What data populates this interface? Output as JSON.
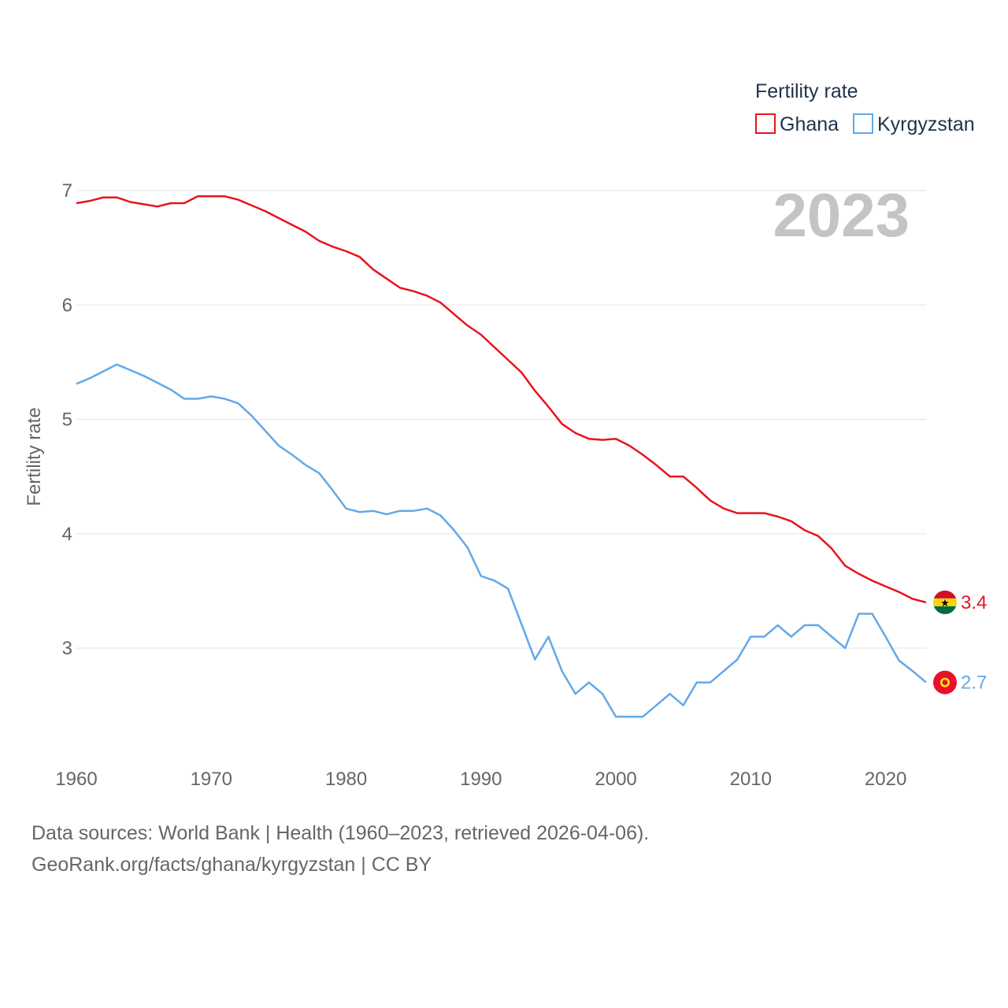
{
  "chart_data": {
    "type": "line",
    "title": "2023",
    "ylabel": "Fertility rate",
    "xlabel": "",
    "xlim": [
      1960,
      2023
    ],
    "ylim": [
      2.3,
      7.2
    ],
    "yticks": [
      3,
      4,
      5,
      6,
      7
    ],
    "xticks": [
      1960,
      1970,
      1980,
      1990,
      2000,
      2010,
      2020
    ],
    "grid": true,
    "legend": {
      "title": "Fertility rate",
      "position": "top-right"
    },
    "series": [
      {
        "name": "Ghana",
        "color": "#e8141c",
        "end_label": "3.4",
        "x": [
          1960,
          1961,
          1962,
          1963,
          1964,
          1965,
          1966,
          1967,
          1968,
          1969,
          1970,
          1971,
          1972,
          1973,
          1974,
          1975,
          1976,
          1977,
          1978,
          1979,
          1980,
          1981,
          1982,
          1983,
          1984,
          1985,
          1986,
          1987,
          1988,
          1989,
          1990,
          1991,
          1992,
          1993,
          1994,
          1995,
          1996,
          1997,
          1998,
          1999,
          2000,
          2001,
          2002,
          2003,
          2004,
          2005,
          2006,
          2007,
          2008,
          2009,
          2010,
          2011,
          2012,
          2013,
          2014,
          2015,
          2016,
          2017,
          2018,
          2019,
          2020,
          2021,
          2022,
          2023
        ],
        "values": [
          6.89,
          6.91,
          6.94,
          6.94,
          6.9,
          6.88,
          6.86,
          6.89,
          6.89,
          6.95,
          6.95,
          6.95,
          6.92,
          6.87,
          6.82,
          6.76,
          6.7,
          6.64,
          6.56,
          6.51,
          6.47,
          6.42,
          6.31,
          6.23,
          6.15,
          6.12,
          6.08,
          6.02,
          5.92,
          5.82,
          5.74,
          5.63,
          5.52,
          5.41,
          5.25,
          5.11,
          4.96,
          4.88,
          4.83,
          4.82,
          4.83,
          4.77,
          4.69,
          4.6,
          4.5,
          4.5,
          4.4,
          4.29,
          4.22,
          4.18,
          4.18,
          4.18,
          4.15,
          4.11,
          4.03,
          3.98,
          3.87,
          3.72,
          3.65,
          3.59,
          3.54,
          3.49,
          3.43,
          3.4
        ]
      },
      {
        "name": "Kyrgyzstan",
        "color": "#62a9e8",
        "end_label": "2.7",
        "x": [
          1960,
          1961,
          1962,
          1963,
          1964,
          1965,
          1966,
          1967,
          1968,
          1969,
          1970,
          1971,
          1972,
          1973,
          1974,
          1975,
          1976,
          1977,
          1978,
          1979,
          1980,
          1981,
          1982,
          1983,
          1984,
          1985,
          1986,
          1987,
          1988,
          1989,
          1990,
          1991,
          1992,
          1993,
          1994,
          1995,
          1996,
          1997,
          1998,
          1999,
          2000,
          2001,
          2002,
          2003,
          2004,
          2005,
          2006,
          2007,
          2008,
          2009,
          2010,
          2011,
          2012,
          2013,
          2014,
          2015,
          2016,
          2017,
          2018,
          2019,
          2020,
          2021,
          2022,
          2023
        ],
        "values": [
          5.31,
          5.36,
          5.42,
          5.48,
          5.43,
          5.38,
          5.32,
          5.26,
          5.18,
          5.18,
          5.2,
          5.18,
          5.14,
          5.03,
          4.9,
          4.77,
          4.69,
          4.6,
          4.53,
          4.38,
          4.22,
          4.19,
          4.2,
          4.17,
          4.2,
          4.2,
          4.22,
          4.16,
          4.03,
          3.88,
          3.63,
          3.59,
          3.52,
          3.21,
          2.9,
          3.1,
          2.8,
          2.6,
          2.7,
          2.6,
          2.4,
          2.4,
          2.4,
          2.5,
          2.6,
          2.5,
          2.7,
          2.7,
          2.8,
          2.9,
          3.1,
          3.1,
          3.2,
          3.1,
          3.2,
          3.2,
          3.1,
          3.0,
          3.3,
          3.3,
          3.1,
          2.89,
          2.8,
          2.7
        ]
      }
    ]
  },
  "footer": {
    "line1": "Data sources: World Bank | Health (1960–2023, retrieved 2026-04-06).",
    "line2": "GeoRank.org/facts/ghana/kyrgyzstan | CC BY"
  }
}
